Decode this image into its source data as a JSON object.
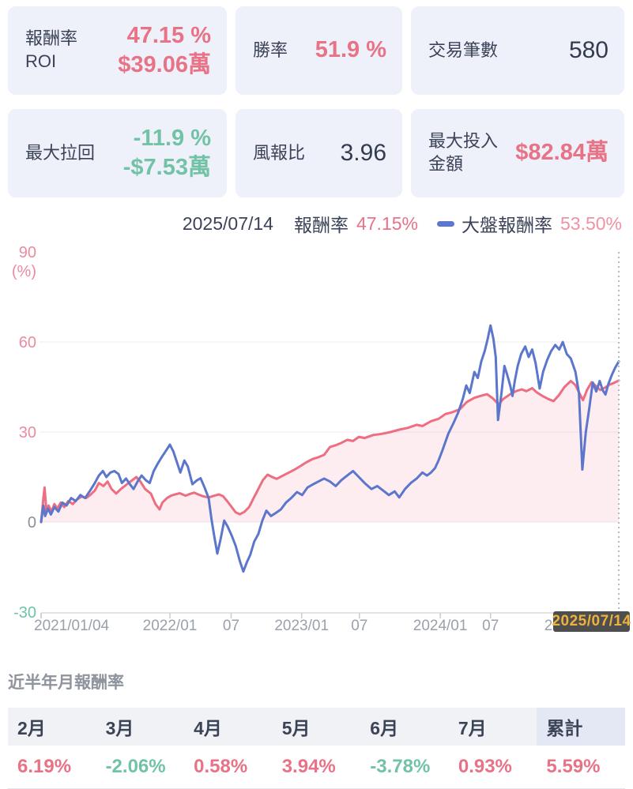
{
  "stats": {
    "cards": [
      {
        "label_line1": "報酬率",
        "label_line2": "ROI",
        "value1": "47.15 %",
        "value2": "$39.06萬",
        "value_color": "#e87286"
      },
      {
        "label_line1": "勝率",
        "label_line2": "",
        "value1": "51.9 %",
        "value2": "",
        "value_color": "#e87286"
      },
      {
        "label_line1": "交易筆數",
        "label_line2": "",
        "value1": "580",
        "value2": "",
        "value_color": "#333b50"
      },
      {
        "label_line1": "最大拉回",
        "label_line2": "",
        "value1": "-11.9 %",
        "value2": "-$7.53萬",
        "value_color": "#72c3a5"
      },
      {
        "label_line1": "風報比",
        "label_line2": "",
        "value1": "3.96",
        "value2": "",
        "value_color": "#333b50"
      },
      {
        "label_line1": "最大投入",
        "label_line2": "金額",
        "value1": "$82.84萬",
        "value2": "",
        "value_color": "#e87286"
      }
    ]
  },
  "legend": {
    "date": "2025/07/14",
    "strategy_label": "報酬率",
    "strategy_value": "47.15%",
    "strategy_value_color": "#e87286",
    "benchmark_label": "大盤報酬率",
    "benchmark_value": "53.50%",
    "benchmark_value_color": "#ef93a2",
    "benchmark_marker_color": "#5b77cf"
  },
  "cursor_tooltip": {
    "text": "2025/07/14",
    "bg": "#4e4e4e",
    "color": "#efb13d"
  },
  "chart_data": {
    "type": "line",
    "ylabel": "(%)",
    "ylim": [
      -30,
      90
    ],
    "grid": true,
    "legend_position": "top-right",
    "yticks": [
      {
        "v": 90,
        "label": "90",
        "color": "#e88da0",
        "grid": false
      },
      {
        "v": 60,
        "label": "60",
        "color": "#e88da0",
        "grid": true
      },
      {
        "v": 30,
        "label": "30",
        "color": "#e88da0",
        "grid": true
      },
      {
        "v": 0,
        "label": "0",
        "color": "#8d9097",
        "grid": true
      },
      {
        "v": -30,
        "label": "-30",
        "color": "#72c3a5",
        "grid": false
      }
    ],
    "xticks": [
      {
        "t": 0,
        "label": "2021/01/04",
        "align": "start"
      },
      {
        "t": 0.223,
        "label": "2022/01",
        "align": "middle"
      },
      {
        "t": 0.329,
        "label": "07",
        "align": "middle"
      },
      {
        "t": 0.451,
        "label": "2023/01",
        "align": "middle"
      },
      {
        "t": 0.551,
        "label": "07",
        "align": "middle"
      },
      {
        "t": 0.691,
        "label": "2024/01",
        "align": "middle"
      },
      {
        "t": 0.778,
        "label": "07",
        "align": "middle"
      },
      {
        "t": 0.918,
        "label": "2025/01",
        "align": "middle"
      }
    ],
    "cursor_t": 1.0,
    "series": [
      {
        "name": "報酬率",
        "final_value": 47.15,
        "color": "#ee6d80",
        "fill": "rgba(238,109,128,0.12)",
        "points": [
          [
            0,
            0
          ],
          [
            0.004,
            8
          ],
          [
            0.006,
            11.5
          ],
          [
            0.009,
            4
          ],
          [
            0.013,
            5.5
          ],
          [
            0.018,
            3.5
          ],
          [
            0.023,
            6
          ],
          [
            0.028,
            4.5
          ],
          [
            0.034,
            6.5
          ],
          [
            0.04,
            5
          ],
          [
            0.047,
            7
          ],
          [
            0.055,
            6
          ],
          [
            0.062,
            7.5
          ],
          [
            0.07,
            8.5
          ],
          [
            0.078,
            8
          ],
          [
            0.085,
            9
          ],
          [
            0.093,
            10.5
          ],
          [
            0.1,
            13
          ],
          [
            0.108,
            12
          ],
          [
            0.115,
            13.5
          ],
          [
            0.122,
            11
          ],
          [
            0.13,
            9.5
          ],
          [
            0.138,
            11
          ],
          [
            0.148,
            12.5
          ],
          [
            0.158,
            14
          ],
          [
            0.165,
            15
          ],
          [
            0.172,
            13.5
          ],
          [
            0.18,
            11
          ],
          [
            0.19,
            9.5
          ],
          [
            0.198,
            6
          ],
          [
            0.205,
            4.2
          ],
          [
            0.21,
            6.5
          ],
          [
            0.218,
            8
          ],
          [
            0.225,
            8.8
          ],
          [
            0.232,
            9.2
          ],
          [
            0.24,
            9.6
          ],
          [
            0.25,
            8.8
          ],
          [
            0.258,
            9.4
          ],
          [
            0.265,
            9.8
          ],
          [
            0.272,
            9.2
          ],
          [
            0.28,
            8.6
          ],
          [
            0.29,
            8.2
          ],
          [
            0.3,
            8.8
          ],
          [
            0.308,
            9.2
          ],
          [
            0.315,
            8.6
          ],
          [
            0.322,
            7
          ],
          [
            0.33,
            5
          ],
          [
            0.337,
            3.2
          ],
          [
            0.344,
            2.6
          ],
          [
            0.352,
            3.4
          ],
          [
            0.36,
            5
          ],
          [
            0.368,
            8
          ],
          [
            0.376,
            11
          ],
          [
            0.384,
            14
          ],
          [
            0.392,
            15.8
          ],
          [
            0.4,
            15
          ],
          [
            0.408,
            14.4
          ],
          [
            0.416,
            15.2
          ],
          [
            0.424,
            16
          ],
          [
            0.432,
            16.8
          ],
          [
            0.44,
            17.6
          ],
          [
            0.45,
            18.8
          ],
          [
            0.46,
            20
          ],
          [
            0.47,
            21
          ],
          [
            0.48,
            21.6
          ],
          [
            0.49,
            22.4
          ],
          [
            0.5,
            25
          ],
          [
            0.51,
            25.6
          ],
          [
            0.52,
            26.4
          ],
          [
            0.53,
            27.4
          ],
          [
            0.54,
            27
          ],
          [
            0.55,
            28.4
          ],
          [
            0.56,
            28
          ],
          [
            0.575,
            29
          ],
          [
            0.59,
            29.4
          ],
          [
            0.605,
            30
          ],
          [
            0.62,
            30.8
          ],
          [
            0.635,
            31.4
          ],
          [
            0.65,
            32.4
          ],
          [
            0.66,
            32
          ],
          [
            0.675,
            33.6
          ],
          [
            0.688,
            34.4
          ],
          [
            0.7,
            36
          ],
          [
            0.712,
            36.6
          ],
          [
            0.725,
            37.6
          ],
          [
            0.737,
            40
          ],
          [
            0.75,
            41.4
          ],
          [
            0.76,
            42
          ],
          [
            0.772,
            42.6
          ],
          [
            0.782,
            41.2
          ],
          [
            0.792,
            39.2
          ],
          [
            0.8,
            41
          ],
          [
            0.812,
            42.6
          ],
          [
            0.822,
            43.6
          ],
          [
            0.832,
            44.2
          ],
          [
            0.84,
            43.6
          ],
          [
            0.85,
            44.6
          ],
          [
            0.858,
            43.2
          ],
          [
            0.868,
            42
          ],
          [
            0.878,
            41
          ],
          [
            0.887,
            40.3
          ],
          [
            0.896,
            42.2
          ],
          [
            0.906,
            45
          ],
          [
            0.917,
            47
          ],
          [
            0.925,
            45.6
          ],
          [
            0.933,
            42.5
          ],
          [
            0.938,
            40.6
          ],
          [
            0.945,
            44
          ],
          [
            0.953,
            46.6
          ],
          [
            0.96,
            45.4
          ],
          [
            0.968,
            44
          ],
          [
            0.976,
            44.8
          ],
          [
            0.984,
            45.8
          ],
          [
            0.992,
            46.4
          ],
          [
            1,
            47.15
          ]
        ]
      },
      {
        "name": "大盤報酬率",
        "final_value": 53.5,
        "color": "#5b76cb",
        "fill": null,
        "points": [
          [
            0,
            0
          ],
          [
            0.004,
            5.5
          ],
          [
            0.007,
            2
          ],
          [
            0.012,
            4.5
          ],
          [
            0.017,
            2.5
          ],
          [
            0.023,
            5
          ],
          [
            0.03,
            3.5
          ],
          [
            0.037,
            6.5
          ],
          [
            0.044,
            5.5
          ],
          [
            0.052,
            8
          ],
          [
            0.06,
            7
          ],
          [
            0.068,
            9
          ],
          [
            0.076,
            8
          ],
          [
            0.085,
            10.5
          ],
          [
            0.093,
            13
          ],
          [
            0.1,
            15.5
          ],
          [
            0.107,
            17
          ],
          [
            0.113,
            15
          ],
          [
            0.12,
            16.5
          ],
          [
            0.127,
            17
          ],
          [
            0.134,
            16
          ],
          [
            0.14,
            13
          ],
          [
            0.147,
            14.5
          ],
          [
            0.154,
            12.5
          ],
          [
            0.16,
            11
          ],
          [
            0.167,
            13.5
          ],
          [
            0.174,
            15.5
          ],
          [
            0.181,
            14
          ],
          [
            0.188,
            13
          ],
          [
            0.195,
            17
          ],
          [
            0.202,
            19.5
          ],
          [
            0.21,
            22
          ],
          [
            0.217,
            24
          ],
          [
            0.223,
            25.8
          ],
          [
            0.229,
            23.5
          ],
          [
            0.235,
            20
          ],
          [
            0.241,
            16.5
          ],
          [
            0.248,
            20.5
          ],
          [
            0.254,
            18.5
          ],
          [
            0.262,
            12.6
          ],
          [
            0.269,
            13.8
          ],
          [
            0.276,
            14.6
          ],
          [
            0.283,
            11.5
          ],
          [
            0.29,
            8
          ],
          [
            0.295,
            1
          ],
          [
            0.3,
            -5
          ],
          [
            0.305,
            -10.5
          ],
          [
            0.311,
            -5.5
          ],
          [
            0.317,
            0.5
          ],
          [
            0.323,
            -1.5
          ],
          [
            0.33,
            -4.5
          ],
          [
            0.337,
            -8
          ],
          [
            0.344,
            -13
          ],
          [
            0.35,
            -16.5
          ],
          [
            0.356,
            -13.5
          ],
          [
            0.362,
            -11
          ],
          [
            0.369,
            -6.5
          ],
          [
            0.376,
            -4
          ],
          [
            0.383,
            0.5
          ],
          [
            0.39,
            3.8
          ],
          [
            0.398,
            2
          ],
          [
            0.406,
            3
          ],
          [
            0.415,
            4.2
          ],
          [
            0.424,
            6.5
          ],
          [
            0.433,
            8
          ],
          [
            0.443,
            10
          ],
          [
            0.452,
            9
          ],
          [
            0.461,
            11.5
          ],
          [
            0.47,
            12.5
          ],
          [
            0.48,
            13.5
          ],
          [
            0.49,
            14.5
          ],
          [
            0.5,
            13.5
          ],
          [
            0.51,
            12
          ],
          [
            0.52,
            14
          ],
          [
            0.53,
            15.5
          ],
          [
            0.54,
            17
          ],
          [
            0.55,
            15
          ],
          [
            0.56,
            13
          ],
          [
            0.572,
            11
          ],
          [
            0.582,
            12
          ],
          [
            0.592,
            10.5
          ],
          [
            0.602,
            9
          ],
          [
            0.612,
            10.2
          ],
          [
            0.62,
            8.2
          ],
          [
            0.63,
            11
          ],
          [
            0.64,
            13
          ],
          [
            0.65,
            14.5
          ],
          [
            0.66,
            16.5
          ],
          [
            0.668,
            15.5
          ],
          [
            0.675,
            16.5
          ],
          [
            0.682,
            18
          ],
          [
            0.688,
            20.5
          ],
          [
            0.695,
            24
          ],
          [
            0.705,
            29.5
          ],
          [
            0.714,
            33
          ],
          [
            0.722,
            36.5
          ],
          [
            0.73,
            41
          ],
          [
            0.736,
            45.5
          ],
          [
            0.742,
            43
          ],
          [
            0.75,
            50
          ],
          [
            0.756,
            48
          ],
          [
            0.762,
            53.5
          ],
          [
            0.768,
            57
          ],
          [
            0.773,
            61
          ],
          [
            0.778,
            65.5
          ],
          [
            0.783,
            61
          ],
          [
            0.787,
            55
          ],
          [
            0.791,
            34
          ],
          [
            0.797,
            43
          ],
          [
            0.802,
            52
          ],
          [
            0.807,
            49
          ],
          [
            0.812,
            45.5
          ],
          [
            0.816,
            42
          ],
          [
            0.82,
            47
          ],
          [
            0.825,
            52
          ],
          [
            0.831,
            56
          ],
          [
            0.838,
            58.5
          ],
          [
            0.844,
            55
          ],
          [
            0.85,
            57.5
          ],
          [
            0.856,
            53
          ],
          [
            0.863,
            44.5
          ],
          [
            0.869,
            50
          ],
          [
            0.876,
            54
          ],
          [
            0.883,
            57
          ],
          [
            0.89,
            59
          ],
          [
            0.897,
            57.5
          ],
          [
            0.903,
            60
          ],
          [
            0.91,
            56
          ],
          [
            0.917,
            54.5
          ],
          [
            0.925,
            50
          ],
          [
            0.931,
            43
          ],
          [
            0.937,
            17.5
          ],
          [
            0.943,
            30
          ],
          [
            0.949,
            38
          ],
          [
            0.955,
            46.5
          ],
          [
            0.961,
            43.5
          ],
          [
            0.967,
            47
          ],
          [
            0.972,
            44
          ],
          [
            0.977,
            42.5
          ],
          [
            0.982,
            46
          ],
          [
            0.988,
            49
          ],
          [
            0.994,
            51.5
          ],
          [
            1,
            53.5
          ]
        ]
      }
    ]
  },
  "monthly": {
    "title": "近半年月報酬率",
    "columns": [
      {
        "label": "2月",
        "value": "6.19%",
        "value_color": "#e87286",
        "highlight": false
      },
      {
        "label": "3月",
        "value": "-2.06%",
        "value_color": "#72c3a5",
        "highlight": false
      },
      {
        "label": "4月",
        "value": "0.58%",
        "value_color": "#e87286",
        "highlight": false
      },
      {
        "label": "5月",
        "value": "3.94%",
        "value_color": "#e87286",
        "highlight": false
      },
      {
        "label": "6月",
        "value": "-3.78%",
        "value_color": "#72c3a5",
        "highlight": false
      },
      {
        "label": "7月",
        "value": "0.93%",
        "value_color": "#e87286",
        "highlight": false
      },
      {
        "label": "累計",
        "value": "5.59%",
        "value_color": "#e87286",
        "highlight": true
      }
    ]
  }
}
